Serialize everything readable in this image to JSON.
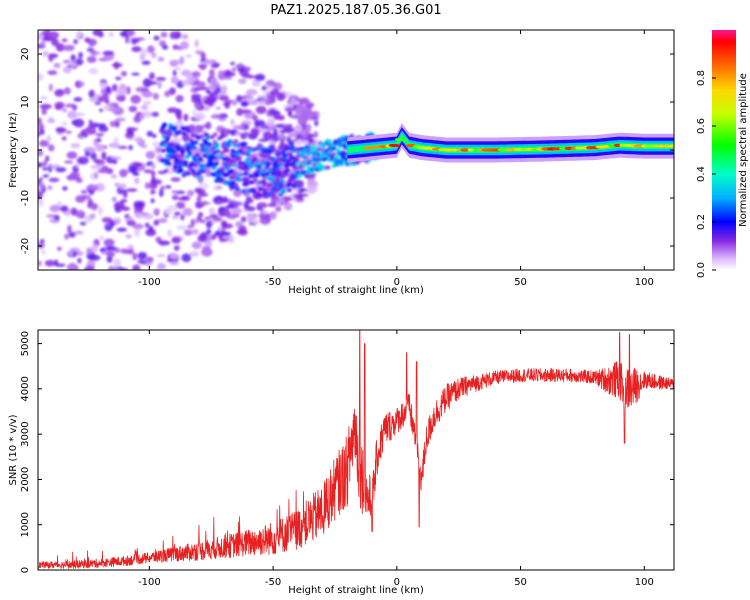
{
  "title": "PAZ1.2025.187.05.36.G01",
  "colors": {
    "snr_line": "#e82020",
    "axes": "#000000"
  },
  "chart_data": [
    {
      "type": "heatmap",
      "name": "spectrogram",
      "xlabel": "Height of straight line (km)",
      "ylabel": "Frequency (Hz)",
      "xlim": [
        -145,
        112
      ],
      "ylim": [
        -25,
        25
      ],
      "xticks": [
        -100,
        -50,
        0,
        50,
        100
      ],
      "xtick_labels": [
        "-100",
        "-50",
        "0",
        "50",
        "100"
      ],
      "yticks": [
        -20,
        -10,
        0,
        10,
        20
      ],
      "ytick_labels": [
        "-20",
        "-10",
        "0",
        "10",
        "20"
      ],
      "colorbar": {
        "label": "Normalized spectral amplitude",
        "range": [
          0,
          1
        ],
        "ticks": [
          0.0,
          0.2,
          0.4,
          0.6,
          0.8
        ],
        "tick_labels": [
          "0.0",
          "0.2",
          "0.4",
          "0.6",
          "0.8"
        ],
        "colormap": "rainbow"
      },
      "ridge": {
        "x": [
          -92,
          -80,
          -70,
          -60,
          -50,
          -40,
          -30,
          -20,
          -10,
          0,
          2,
          5,
          10,
          20,
          40,
          60,
          80,
          90,
          100,
          112
        ],
        "freq": [
          0.5,
          -1,
          -2,
          -4,
          -5,
          -3,
          -1,
          0,
          0.5,
          1,
          3,
          1,
          0.5,
          0,
          0,
          0.2,
          0.5,
          1,
          0.8,
          0.8
        ]
      }
    },
    {
      "type": "line",
      "name": "snr",
      "xlabel": "Height of straight line (km)",
      "ylabel": "SNR (10 * v/v)",
      "xlim": [
        -145,
        112
      ],
      "ylim": [
        0,
        5300
      ],
      "xticks": [
        -100,
        -50,
        0,
        50,
        100
      ],
      "xtick_labels": [
        "-100",
        "-50",
        "0",
        "50",
        "100"
      ],
      "yticks": [
        0,
        1000,
        2000,
        3000,
        4000,
        5000
      ],
      "ytick_labels": [
        "0",
        "1000",
        "2000",
        "3000",
        "4000",
        "5000"
      ],
      "series": [
        {
          "trend_x": [
            -145,
            -130,
            -120,
            -110,
            -100,
            -90,
            -80,
            -70,
            -60,
            -50,
            -45,
            -40,
            -35,
            -30,
            -25,
            -20,
            -17,
            -15,
            -12,
            -10,
            -8,
            -5,
            0,
            5,
            8,
            10,
            12,
            15,
            20,
            25,
            30,
            40,
            50,
            60,
            70,
            80,
            85,
            90,
            92,
            95,
            100,
            105,
            112
          ],
          "trend_y": [
            110,
            120,
            150,
            200,
            270,
            350,
            420,
            510,
            600,
            700,
            800,
            900,
            1100,
            1300,
            1800,
            2200,
            3200,
            2300,
            1600,
            1500,
            2500,
            3100,
            3300,
            3600,
            2800,
            2000,
            2900,
            3400,
            3800,
            4000,
            4100,
            4250,
            4300,
            4300,
            4300,
            4250,
            4200,
            4200,
            4000,
            4000,
            4200,
            4150,
            4100
          ],
          "noise_x": [
            -145,
            -100,
            -60,
            -40,
            -30,
            -20,
            -15,
            -10,
            -5,
            0,
            10,
            20,
            30,
            40,
            80,
            88,
            95,
            100,
            112
          ],
          "noise_amp": [
            70,
            120,
            300,
            450,
            600,
            800,
            900,
            500,
            400,
            300,
            350,
            300,
            200,
            150,
            150,
            400,
            500,
            200,
            120
          ],
          "spikes": [
            {
              "x": -15,
              "y": 5300
            },
            {
              "x": -13,
              "y": 5000
            },
            {
              "x": -10,
              "y": 850
            },
            {
              "x": 4,
              "y": 4800
            },
            {
              "x": 8,
              "y": 4600
            },
            {
              "x": 9,
              "y": 950
            },
            {
              "x": 90,
              "y": 5250
            },
            {
              "x": 92,
              "y": 2800
            },
            {
              "x": 94,
              "y": 5200
            }
          ]
        }
      ]
    }
  ]
}
